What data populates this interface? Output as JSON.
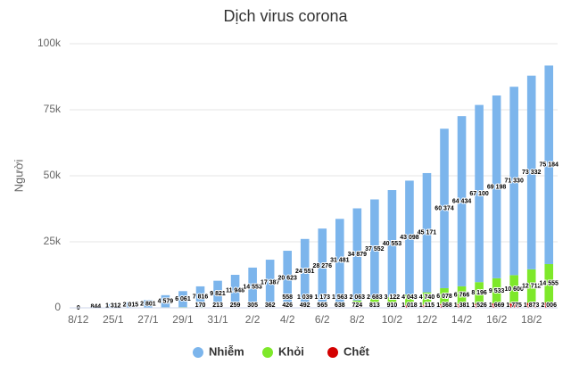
{
  "chart_data": {
    "type": "stacked_bar",
    "title": "Dịch virus corona",
    "y_label": "Người",
    "categories": [
      "8/12",
      null,
      "25/1",
      null,
      "27/1",
      null,
      "29/1",
      null,
      "31/1",
      null,
      "2/2",
      null,
      "4/2",
      null,
      "6/2",
      null,
      "8/2",
      null,
      "10/2",
      null,
      "12/2",
      null,
      "14/2",
      null,
      "16/2",
      null,
      "18/2",
      null
    ],
    "series": [
      {
        "name": "Chết",
        "color": "#d40000",
        "values": [
          0,
          25,
          41,
          56,
          80,
          106,
          132,
          170,
          213,
          259,
          305,
          362,
          426,
          492,
          565,
          638,
          724,
          813,
          910,
          1018,
          1115,
          1368,
          1381,
          1526,
          1669,
          1775,
          1873,
          2006
        ],
        "value_labels": [
          null,
          null,
          null,
          null,
          null,
          null,
          null,
          "170",
          "213",
          "259",
          "305",
          "362",
          "426",
          "492",
          "565",
          "638",
          "724",
          "813",
          "910",
          "1 018",
          "1 115",
          "1 368",
          "1 381",
          "1 526",
          "1 669",
          "1 775",
          "1 873",
          "2 006"
        ]
      },
      {
        "name": "Khỏi",
        "color": "#7ee82a",
        "values": [
          0,
          34,
          38,
          51,
          60,
          107,
          126,
          143,
          222,
          295,
          380,
          475,
          558,
          1039,
          1173,
          1563,
          2063,
          2683,
          3122,
          4043,
          4740,
          6078,
          6766,
          8196,
          9533,
          10600,
          12712,
          14555
        ],
        "value_labels": [
          null,
          null,
          null,
          null,
          null,
          null,
          null,
          null,
          null,
          null,
          null,
          null,
          "558",
          "1 039",
          "1 173",
          "1 563",
          "2 063",
          "2 683",
          "3 122",
          "4 043",
          "4 740",
          "6 078",
          "6 766",
          "8 196",
          "9 533",
          "10 600",
          "12 712",
          "14 555"
        ]
      },
      {
        "name": "Nhiễm",
        "color": "#7cb5ec",
        "values": [
          0,
          844,
          1312,
          2015,
          2801,
          4579,
          6061,
          7816,
          9821,
          11948,
          14553,
          17387,
          20623,
          24551,
          28276,
          31481,
          34879,
          37552,
          40553,
          43098,
          45171,
          60374,
          64434,
          67100,
          69198,
          71330,
          73332,
          75184
        ],
        "value_labels": [
          "0",
          "844",
          "1 312",
          "2 015",
          "2 801",
          "4 579",
          "6 061",
          "7 816",
          "9 821",
          "11 948",
          "14 553",
          "17 387",
          "20 623",
          "24 551",
          "28 276",
          "31 481",
          "34 879",
          "37 552",
          "40 553",
          "43 098",
          "45 171",
          "60 374",
          "64 434",
          "67 100",
          "69 198",
          "71 330",
          "73 332",
          "75 184"
        ]
      }
    ],
    "ylim": [
      0,
      100000
    ],
    "yticks": [
      0,
      {
        "value": 25000,
        "label": "25k"
      },
      {
        "value": 50000,
        "label": "50k"
      },
      {
        "value": 75000,
        "label": "75k"
      },
      {
        "value": 100000,
        "label": "100k"
      }
    ],
    "grid": true,
    "legend": "bottom"
  }
}
